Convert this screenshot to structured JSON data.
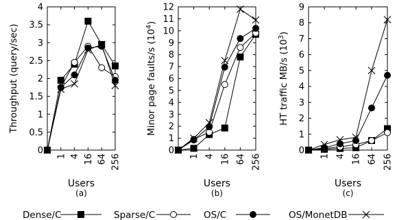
{
  "categories": [
    "0",
    "1",
    "4",
    "16",
    "64",
    "256"
  ],
  "legend_placement": "bottom",
  "legend": [
    {
      "name": "Dense/C",
      "marker": "filled-square"
    },
    {
      "name": "Sparse/C",
      "marker": "open-circle"
    },
    {
      "name": "OS/C",
      "marker": "filled-circle"
    },
    {
      "name": "OS/MonetDB",
      "marker": "cross"
    }
  ],
  "chart_data": [
    {
      "type": "line",
      "caption": "(a)",
      "xlabel": "Users",
      "ylabel": "Throughput (query/sec)",
      "ylim": [
        0,
        4
      ],
      "yticks": [
        "0",
        "0.5",
        "1",
        "1.5",
        "2",
        "2.5",
        "3",
        "3.5",
        "4"
      ],
      "xticks": [
        "1",
        "4",
        "16",
        "64",
        "256"
      ],
      "grid": false,
      "categories": [
        "0",
        "1",
        "4",
        "16",
        "64",
        "256"
      ],
      "series": [
        {
          "name": "Dense/C",
          "values": [
            0,
            1.95,
            2.4,
            3.6,
            2.95,
            2.35
          ]
        },
        {
          "name": "Sparse/C",
          "values": [
            0,
            1.75,
            2.45,
            2.9,
            2.3,
            2.05
          ]
        },
        {
          "name": "OS/C",
          "values": [
            0,
            1.75,
            2.1,
            2.85,
            2.9,
            1.95
          ]
        },
        {
          "name": "OS/MonetDB",
          "values": [
            0,
            1.7,
            1.85,
            2.8,
            2.95,
            1.8
          ]
        }
      ]
    },
    {
      "type": "line",
      "caption": "(b)",
      "xlabel": "Users",
      "ylabel": "Minor page faults/s (10",
      "ylabel_sup": "4",
      "ylabel_end": ")",
      "ylim": [
        0,
        12
      ],
      "yticks": [
        "0",
        "1",
        "2",
        "3",
        "4",
        "5",
        "6",
        "7",
        "8",
        "9",
        "10",
        "11",
        "12"
      ],
      "xticks": [
        "1",
        "4",
        "16",
        "64",
        "256"
      ],
      "grid": false,
      "categories": [
        "0",
        "1",
        "4",
        "16",
        "64",
        "256"
      ],
      "series": [
        {
          "name": "Dense/C",
          "values": [
            0,
            0.15,
            1.3,
            1.85,
            7.8,
            9.7
          ]
        },
        {
          "name": "Sparse/C",
          "values": [
            0,
            0.9,
            1.5,
            5.5,
            8.6,
            9.8
          ]
        },
        {
          "name": "OS/C",
          "values": [
            0,
            0.85,
            1.95,
            6.95,
            9.35,
            10.2
          ]
        },
        {
          "name": "OS/MonetDB",
          "values": [
            0,
            1.0,
            2.3,
            7.5,
            11.8,
            10.9
          ]
        }
      ]
    },
    {
      "type": "line",
      "caption": "(c)",
      "xlabel": "Users",
      "ylabel": "HT traffic MB/s (10",
      "ylabel_sup": "3",
      "ylabel_end": ")",
      "ylim": [
        0,
        9
      ],
      "yticks": [
        "0",
        "1",
        "2",
        "3",
        "4",
        "5",
        "6",
        "7",
        "8",
        "9"
      ],
      "xticks": [
        "1",
        "4",
        "16",
        "64",
        "256"
      ],
      "grid": false,
      "categories": [
        "0",
        "1",
        "4",
        "16",
        "64",
        "256"
      ],
      "series": [
        {
          "name": "Dense/C",
          "values": [
            0,
            0.05,
            0.1,
            0.15,
            0.6,
            1.35
          ]
        },
        {
          "name": "Sparse/C",
          "values": [
            0,
            0.1,
            0.2,
            0.35,
            0.6,
            1.1
          ]
        },
        {
          "name": "OS/C",
          "values": [
            0,
            0.15,
            0.4,
            0.6,
            2.65,
            4.7
          ]
        },
        {
          "name": "OS/MonetDB",
          "values": [
            0,
            0.35,
            0.65,
            0.8,
            5.0,
            8.2
          ]
        }
      ]
    }
  ]
}
